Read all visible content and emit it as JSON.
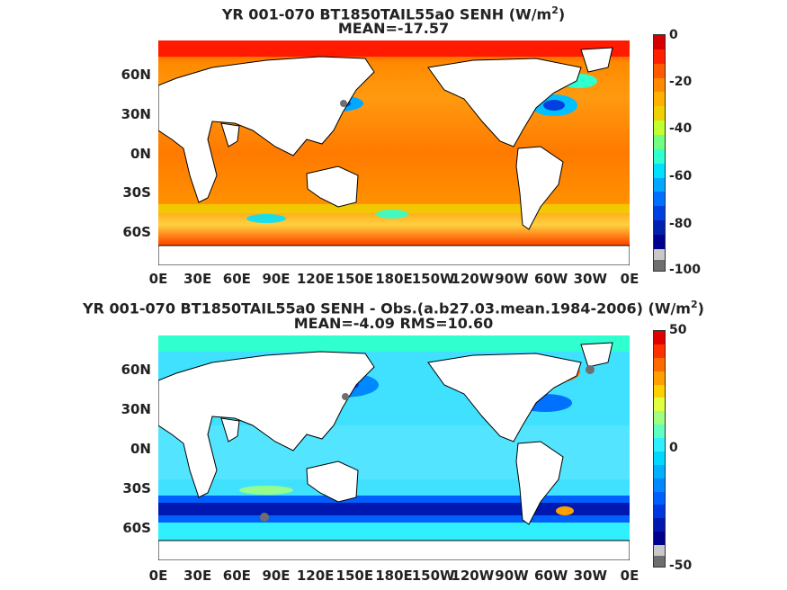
{
  "colors": {
    "land": "#ffffff",
    "coast": "#000000",
    "missing": "#6e6e6e",
    "missing_light": "#c8c8c8"
  },
  "axes": {
    "lat_labels": [
      "60N",
      "30N",
      "0N",
      "30S",
      "60S"
    ],
    "lon_labels": [
      "0E",
      "30E",
      "60E",
      "90E",
      "120E",
      "150E",
      "180E",
      "150W",
      "120W",
      "90W",
      "60W",
      "30W",
      "0E"
    ]
  },
  "panels": [
    {
      "title_prefix": "YR 001-070 BT1850TAIL55a0  SENH (W/m",
      "title_sup": "2",
      "title_suffix": ")",
      "subtitle": "MEAN=-17.57",
      "colorbar": {
        "ticks": [
          "0",
          "-20",
          "-40",
          "-60",
          "-80",
          "-100"
        ],
        "stops": [
          "#d40000",
          "#ff2000",
          "#ff5a00",
          "#ff8a00",
          "#ffb000",
          "#f0d000",
          "#c0ff30",
          "#70ff80",
          "#30ffd0",
          "#00e0ff",
          "#00a8ff",
          "#0070ff",
          "#0040e0",
          "#0020b0",
          "#000090"
        ]
      }
    },
    {
      "title_prefix": "YR 001-070 BT1850TAIL55a0 SENH - Obs.(a.b27.03.mean.1984-2006) (W/m",
      "title_sup": "2",
      "title_suffix": ")",
      "subtitle": "MEAN=-4.09 RMS=10.60",
      "colorbar": {
        "ticks": [
          "50",
          "0",
          "-50"
        ],
        "stops": [
          "#e00000",
          "#ff3000",
          "#ff6a00",
          "#ffa000",
          "#ffd000",
          "#e0ff40",
          "#a0ff80",
          "#60ffc0",
          "#30f0ff",
          "#00d8ff",
          "#00b0ff",
          "#0088ff",
          "#0060ff",
          "#0038e0",
          "#0018b0",
          "#000090"
        ]
      }
    }
  ]
}
